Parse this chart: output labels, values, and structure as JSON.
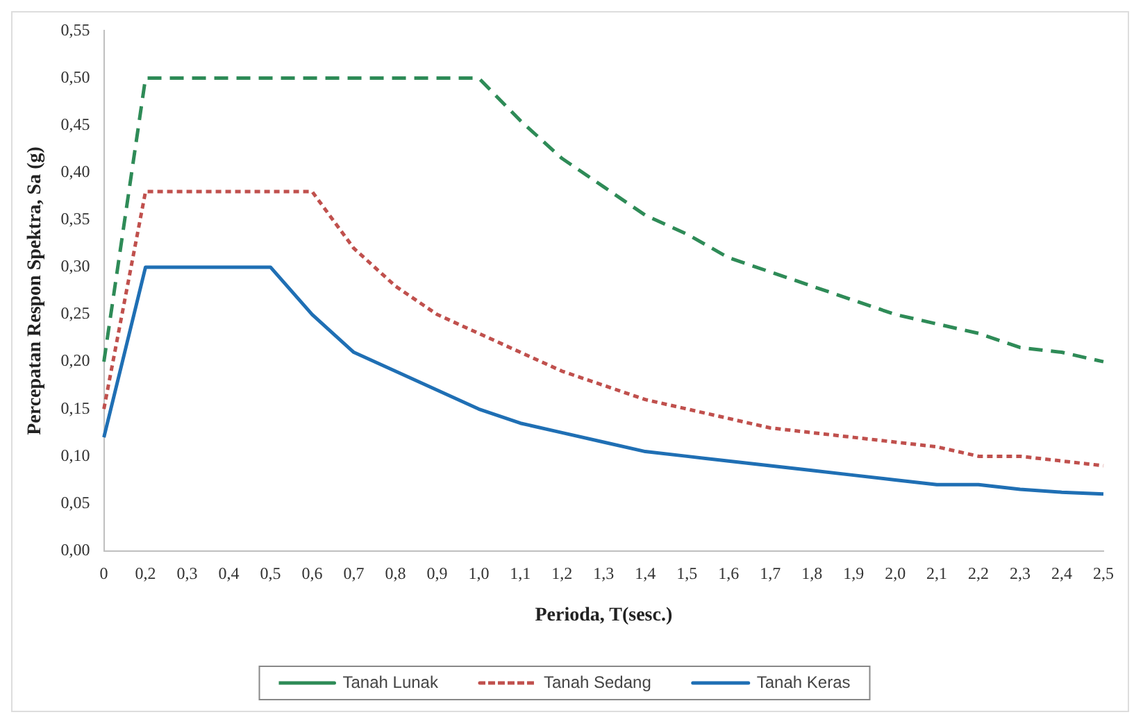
{
  "chart_data": {
    "type": "line",
    "xlabel": "Perioda, T(sesc.)",
    "ylabel": "Percepatan Respon Spektra, Sa (g)",
    "categories": [
      "0",
      "0,2",
      "0,3",
      "0,4",
      "0,5",
      "0,6",
      "0,7",
      "0,8",
      "0,9",
      "1,0",
      "1,1",
      "1,2",
      "1,3",
      "1,4",
      "1,5",
      "1,6",
      "1,7",
      "1,8",
      "1,9",
      "2,0",
      "2,1",
      "2,2",
      "2,3",
      "2,4",
      "2,5"
    ],
    "series": [
      {
        "name": "Tanah Lunak",
        "color": "#2e8b57",
        "line_style": "dashed",
        "values": [
          0.2,
          0.5,
          0.5,
          0.5,
          0.5,
          0.5,
          0.5,
          0.5,
          0.5,
          0.5,
          0.455,
          0.415,
          0.385,
          0.355,
          0.335,
          0.31,
          0.295,
          0.28,
          0.265,
          0.25,
          0.24,
          0.23,
          0.215,
          0.21,
          0.2
        ]
      },
      {
        "name": "Tanah Sedang",
        "color": "#c0504d",
        "line_style": "dotted",
        "values": [
          0.15,
          0.38,
          0.38,
          0.38,
          0.38,
          0.38,
          0.32,
          0.28,
          0.25,
          0.23,
          0.21,
          0.19,
          0.175,
          0.16,
          0.15,
          0.14,
          0.13,
          0.125,
          0.12,
          0.115,
          0.11,
          0.1,
          0.1,
          0.095,
          0.09
        ]
      },
      {
        "name": "Tanah Keras",
        "color": "#1f6fb4",
        "line_style": "solid",
        "values": [
          0.12,
          0.3,
          0.3,
          0.3,
          0.3,
          0.25,
          0.21,
          0.19,
          0.17,
          0.15,
          0.135,
          0.125,
          0.115,
          0.105,
          0.1,
          0.095,
          0.09,
          0.085,
          0.08,
          0.075,
          0.07,
          0.07,
          0.065,
          0.062,
          0.06
        ]
      }
    ],
    "ylim": [
      0,
      0.55
    ],
    "yticks": [
      {
        "value": 0,
        "label": "0,00"
      },
      {
        "value": 0.05,
        "label": "0,05"
      },
      {
        "value": 0.1,
        "label": "0,10"
      },
      {
        "value": 0.15,
        "label": "0,15"
      },
      {
        "value": 0.2,
        "label": "0,20"
      },
      {
        "value": 0.25,
        "label": "0,25"
      },
      {
        "value": 0.3,
        "label": "0,30"
      },
      {
        "value": 0.35,
        "label": "0,35"
      },
      {
        "value": 0.4,
        "label": "0,40"
      },
      {
        "value": 0.45,
        "label": "0,45"
      },
      {
        "value": 0.5,
        "label": "0,50"
      },
      {
        "value": 0.55,
        "label": "0,55"
      }
    ],
    "grid": false,
    "legend": "bottom",
    "marker": "none"
  }
}
